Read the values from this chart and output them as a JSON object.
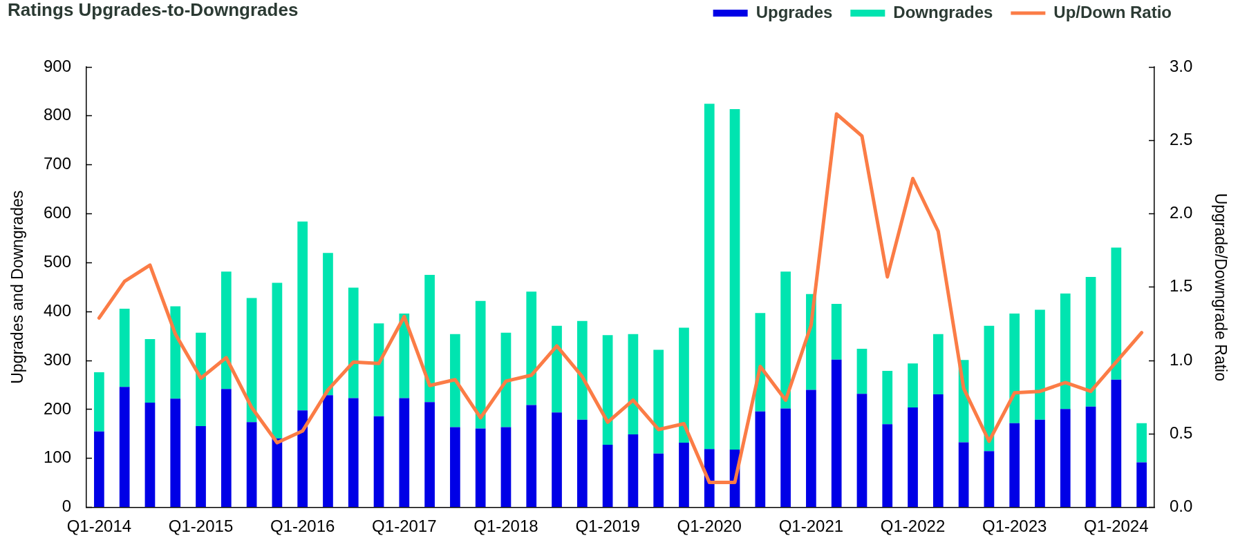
{
  "chart_data": {
    "type": "bar",
    "title": "Ratings Upgrades-to-Downgrades",
    "ylabel": "Upgrades and Downgrades",
    "y2label": "Upgrade/Downgrade Ratio",
    "categories": [
      "Q1-2014",
      null,
      null,
      null,
      "Q1-2015",
      null,
      null,
      null,
      "Q1-2016",
      null,
      null,
      null,
      "Q1-2017",
      null,
      null,
      null,
      "Q1-2018",
      null,
      null,
      null,
      "Q1-2019",
      null,
      null,
      null,
      "Q1-2020",
      null,
      null,
      null,
      "Q1-2021",
      null,
      null,
      null,
      "Q1-2022",
      null,
      null,
      null,
      "Q1-2023",
      null,
      null,
      null,
      "Q1-2024",
      null
    ],
    "series": [
      {
        "name": "Upgrades",
        "color": "#0000e6",
        "values": [
          155,
          246,
          214,
          222,
          166,
          242,
          174,
          141,
          198,
          229,
          223,
          186,
          223,
          215,
          164,
          161,
          164,
          209,
          194,
          179,
          128,
          149,
          110,
          132,
          119,
          118,
          196,
          202,
          240,
          302,
          232,
          170,
          204,
          231,
          133,
          115,
          172,
          179,
          201,
          206,
          261,
          92
        ]
      },
      {
        "name": "Downgrades",
        "color": "#00e4b0",
        "values": [
          121,
          160,
          130,
          189,
          191,
          240,
          254,
          318,
          386,
          291,
          226,
          190,
          173,
          260,
          190,
          261,
          193,
          232,
          177,
          202,
          224,
          205,
          212,
          235,
          706,
          696,
          201,
          280,
          196,
          114,
          92,
          109,
          90,
          123,
          168,
          256,
          224,
          225,
          236,
          265,
          270,
          80
        ]
      },
      {
        "name": "Up/Down Ratio",
        "type": "line",
        "axis": "y2",
        "color": "#fb7c46",
        "values": [
          1.29,
          1.54,
          1.65,
          1.18,
          0.88,
          1.02,
          0.68,
          0.44,
          0.52,
          0.8,
          0.99,
          0.98,
          1.3,
          0.83,
          0.87,
          0.61,
          0.86,
          0.9,
          1.1,
          0.89,
          0.58,
          0.73,
          0.53,
          0.57,
          0.17,
          0.17,
          0.96,
          0.73,
          1.24,
          2.68,
          2.53,
          1.57,
          2.24,
          1.88,
          0.81,
          0.45,
          0.78,
          0.79,
          0.85,
          0.79,
          0.99,
          1.19
        ]
      }
    ],
    "stacked": true,
    "ylim": [
      0,
      900
    ],
    "yticks": [
      0,
      100,
      200,
      300,
      400,
      500,
      600,
      700,
      800,
      900
    ],
    "y2lim": [
      0,
      3
    ],
    "y2ticks": [
      {
        "value": 0,
        "label": "0.0"
      },
      0.5,
      {
        "value": 1,
        "label": "1.0"
      },
      1.5,
      {
        "value": 2,
        "label": "2.0"
      },
      2.5,
      {
        "value": 3,
        "label": "3.0"
      }
    ],
    "legend": "top right",
    "grid": false,
    "marker": "none"
  }
}
